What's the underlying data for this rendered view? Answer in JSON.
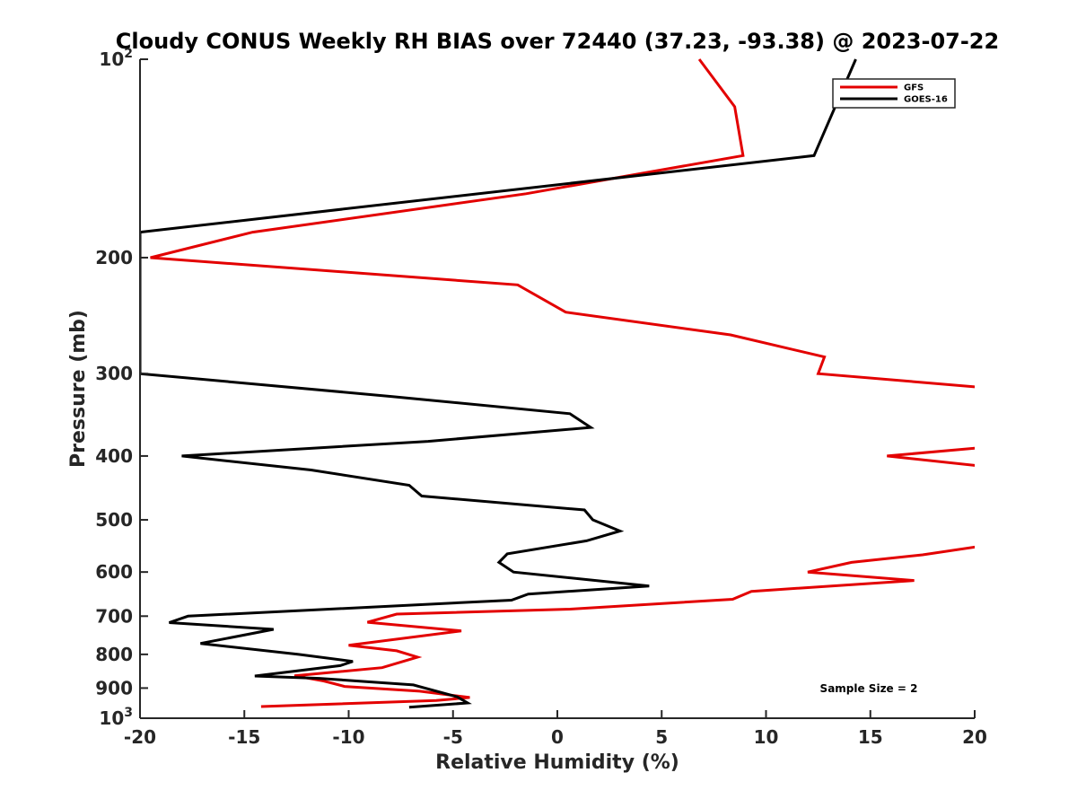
{
  "chart_data": {
    "type": "line",
    "title": "Cloudy CONUS Weekly RH BIAS over 72440 (37.23, -93.38) @ 2023-07-22",
    "xlabel": "Relative Humidity (%)",
    "ylabel": "Pressure (mb)",
    "xlim": [
      -20,
      20
    ],
    "ylim": [
      100,
      1000
    ],
    "y_scale": "log",
    "y_reversed": true,
    "x_ticks": [
      "-20",
      "-15",
      "-10",
      "-5",
      "0",
      "5",
      "10",
      "15",
      "20"
    ],
    "x_tick_values": [
      -20,
      -15,
      -10,
      -5,
      0,
      5,
      10,
      15,
      20
    ],
    "y_tick_values": [
      100,
      200,
      300,
      400,
      500,
      600,
      700,
      800,
      900,
      1000
    ],
    "y_ticks": [
      {
        "base": "10",
        "exp": "2"
      },
      {
        "base": "200",
        "exp": ""
      },
      {
        "base": "300",
        "exp": ""
      },
      {
        "base": "400",
        "exp": ""
      },
      {
        "base": "500",
        "exp": ""
      },
      {
        "base": "600",
        "exp": ""
      },
      {
        "base": "700",
        "exp": ""
      },
      {
        "base": "800",
        "exp": ""
      },
      {
        "base": "900",
        "exp": ""
      },
      {
        "base": "10",
        "exp": "3"
      }
    ],
    "legend_position": "top-right",
    "grid": false,
    "annotation": "Sample Size = 2",
    "series": [
      {
        "name": "GFS",
        "color": "#e30000",
        "points": [
          [
            6.8,
            100
          ],
          [
            8.5,
            118
          ],
          [
            8.9,
            140
          ],
          [
            -1.5,
            160
          ],
          [
            -14.6,
            183
          ],
          [
            -19.5,
            200
          ],
          [
            -1.9,
            220
          ],
          [
            0.4,
            242
          ],
          [
            8.3,
            262
          ],
          [
            12.8,
            283
          ],
          [
            12.5,
            300
          ],
          [
            20.5,
            315
          ],
          [
            20.5,
            388
          ],
          [
            15.8,
            400
          ],
          [
            20.5,
            415
          ],
          [
            20.5,
            547
          ],
          [
            17.5,
            565
          ],
          [
            14.1,
            580
          ],
          [
            12.0,
            600
          ],
          [
            17.1,
            618
          ],
          [
            9.3,
            642
          ],
          [
            8.4,
            660
          ],
          [
            0.6,
            683
          ],
          [
            -7.7,
            695
          ],
          [
            -9.1,
            715
          ],
          [
            -4.6,
            737
          ],
          [
            -10.0,
            775
          ],
          [
            -7.7,
            790
          ],
          [
            -6.7,
            808
          ],
          [
            -8.4,
            838
          ],
          [
            -12.6,
            862
          ],
          [
            -11.2,
            878
          ],
          [
            -10.2,
            895
          ],
          [
            -6.6,
            910
          ],
          [
            -4.2,
            930
          ],
          [
            -5.8,
            940
          ],
          [
            -14.2,
            960
          ]
        ]
      },
      {
        "name": "GOES-16",
        "color": "#000000",
        "points": [
          [
            14.3,
            100
          ],
          [
            12.3,
            140
          ],
          [
            -20.0,
            183
          ],
          [
            -20.0,
            300
          ],
          [
            -7.9,
            325
          ],
          [
            0.6,
            345
          ],
          [
            1.6,
            362
          ],
          [
            -6.2,
            380
          ],
          [
            -18.0,
            400
          ],
          [
            -11.8,
            420
          ],
          [
            -7.1,
            443
          ],
          [
            -6.5,
            460
          ],
          [
            1.3,
            483
          ],
          [
            1.7,
            500
          ],
          [
            3.0,
            520
          ],
          [
            1.4,
            538
          ],
          [
            -2.4,
            563
          ],
          [
            -2.8,
            580
          ],
          [
            -2.1,
            600
          ],
          [
            4.4,
            630
          ],
          [
            -1.4,
            648
          ],
          [
            -2.2,
            662
          ],
          [
            -17.7,
            700
          ],
          [
            -18.6,
            716
          ],
          [
            -13.6,
            733
          ],
          [
            -17.1,
            770
          ],
          [
            -12.4,
            800
          ],
          [
            -9.8,
            820
          ],
          [
            -10.4,
            832
          ],
          [
            -14.5,
            863
          ],
          [
            -11.4,
            870
          ],
          [
            -6.9,
            890
          ],
          [
            -4.8,
            928
          ],
          [
            -4.3,
            948
          ],
          [
            -7.1,
            962
          ]
        ]
      }
    ]
  }
}
